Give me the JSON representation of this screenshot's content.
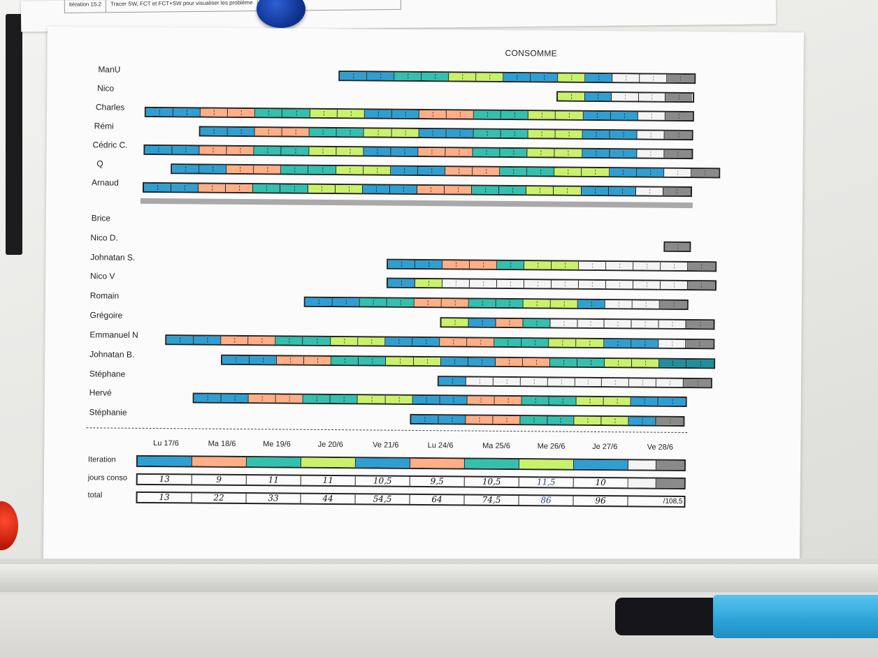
{
  "top_strip": {
    "iteration": "itération 15.2",
    "note": "Tracer SW, FCT et FCT+SW pour visualiser les problème"
  },
  "title": "CONSOMME",
  "colors": {
    "blue": "#2f9fd2",
    "orange": "#ffae86",
    "teal": "#33c0ae",
    "lime": "#c9f26a",
    "white": "#f4f4f4",
    "grey": "#8a8a8a",
    "dark": "#1f8f9a"
  },
  "team_a": [
    {
      "name": "ManU",
      "start": 482,
      "cells": [
        "b",
        "b",
        "t",
        "t",
        "l",
        "l",
        "b",
        "b",
        "l",
        "b",
        "w",
        "w",
        "g"
      ]
    },
    {
      "name": "Nico",
      "start": 794,
      "cells": [
        "l",
        "b",
        "w",
        "w",
        "g"
      ]
    },
    {
      "name": "Charles",
      "start": 205,
      "cells": [
        "b",
        "b",
        "o",
        "o",
        "t",
        "t",
        "l",
        "l",
        "b",
        "b",
        "o",
        "o",
        "t",
        "t",
        "l",
        "l",
        "b",
        "b",
        "w",
        "g"
      ]
    },
    {
      "name": "Rémi",
      "start": 283,
      "cells": [
        "b",
        "b",
        "o",
        "o",
        "t",
        "t",
        "l",
        "l",
        "b",
        "b",
        "t",
        "t",
        "l",
        "l",
        "b",
        "b",
        "w",
        "g"
      ]
    },
    {
      "name": "Cédric C.",
      "start": 204,
      "cells": [
        "b",
        "b",
        "o",
        "o",
        "t",
        "t",
        "l",
        "l",
        "b",
        "b",
        "o",
        "o",
        "t",
        "t",
        "l",
        "l",
        "b",
        "b",
        "w",
        "g"
      ]
    },
    {
      "name": "Q",
      "start": 243,
      "cells": [
        "b",
        "b",
        "o",
        "o",
        "t",
        "t",
        "l",
        "l",
        "b",
        "b",
        "o",
        "o",
        "t",
        "t",
        "l",
        "l",
        "b",
        "b",
        "w",
        "g"
      ]
    },
    {
      "name": "Arnaud",
      "start": 203,
      "cells": [
        "b",
        "b",
        "o",
        "o",
        "t",
        "t",
        "l",
        "l",
        "b",
        "b",
        "o",
        "o",
        "t",
        "t",
        "l",
        "l",
        "b",
        "b",
        "w",
        "g"
      ]
    }
  ],
  "team_b": [
    {
      "name": "Brice",
      "start": 949,
      "cells": []
    },
    {
      "name": "Nico D.",
      "start": 949,
      "cells": [
        "g"
      ]
    },
    {
      "name": "Johnatan S.",
      "start": 553,
      "cells": [
        "b",
        "b",
        "o",
        "o",
        "t",
        "l",
        "l",
        "w",
        "w",
        "w",
        "w",
        "g"
      ]
    },
    {
      "name": "Nico V",
      "start": 553,
      "cells": [
        "b",
        "l",
        "w",
        "w",
        "w",
        "w",
        "w",
        "w",
        "w",
        "w",
        "w",
        "g"
      ]
    },
    {
      "name": "Romain",
      "start": 435,
      "cells": [
        "b",
        "b",
        "t",
        "t",
        "o",
        "o",
        "t",
        "t",
        "l",
        "l",
        "b",
        "w",
        "w",
        "g"
      ]
    },
    {
      "name": "Grégoire",
      "start": 630,
      "cells": [
        "l",
        "b",
        "o",
        "t",
        "w",
        "w",
        "w",
        "w",
        "w",
        "g"
      ]
    },
    {
      "name": "Emmanuel N",
      "start": 237,
      "cells": [
        "b",
        "b",
        "o",
        "o",
        "t",
        "t",
        "l",
        "l",
        "b",
        "b",
        "o",
        "o",
        "t",
        "t",
        "l",
        "l",
        "b",
        "b",
        "w",
        "g"
      ]
    },
    {
      "name": "Johnatan B.",
      "start": 317,
      "cells": [
        "b",
        "b",
        "o",
        "o",
        "t",
        "t",
        "l",
        "l",
        "b",
        "b",
        "o",
        "o",
        "t",
        "t",
        "l",
        "l",
        "d",
        "d"
      ]
    },
    {
      "name": "Stéphane",
      "start": 627,
      "cells": [
        "b",
        "w",
        "w",
        "w",
        "w",
        "w",
        "w",
        "w",
        "w",
        "g"
      ]
    },
    {
      "name": "Hervé",
      "start": 277,
      "cells": [
        "b",
        "b",
        "o",
        "o",
        "t",
        "t",
        "l",
        "l",
        "b",
        "b",
        "o",
        "o",
        "t",
        "t",
        "l",
        "l",
        "b",
        "b"
      ]
    },
    {
      "name": "Stéphanie",
      "start": 588,
      "cells": [
        "b",
        "b",
        "o",
        "o",
        "t",
        "t",
        "l",
        "l",
        "b",
        "g"
      ]
    }
  ],
  "days": [
    "Lu 17/6",
    "Ma 18/6",
    "Me 19/6",
    "Je 20/6",
    "Ve 21/6",
    "Lu 24/6",
    "Ma 25/6",
    "Me 26/6",
    "Je 27/6",
    "Ve 28/6"
  ],
  "summary": {
    "iteration_label": "Iteration",
    "iteration_cells": [
      "b",
      "o",
      "t",
      "l",
      "b",
      "o",
      "t",
      "l",
      "b",
      "w",
      "g"
    ],
    "jours_label": "jours conso",
    "jours_values": [
      "13",
      "9",
      "11",
      "11",
      "10,5",
      "9,5",
      "10,5",
      "11,5",
      "10",
      "",
      ""
    ],
    "total_label": "total",
    "total_values": [
      "13",
      "22",
      "33",
      "44",
      "54,5",
      "64",
      "74,5",
      "86",
      "96",
      "/108,5"
    ]
  }
}
